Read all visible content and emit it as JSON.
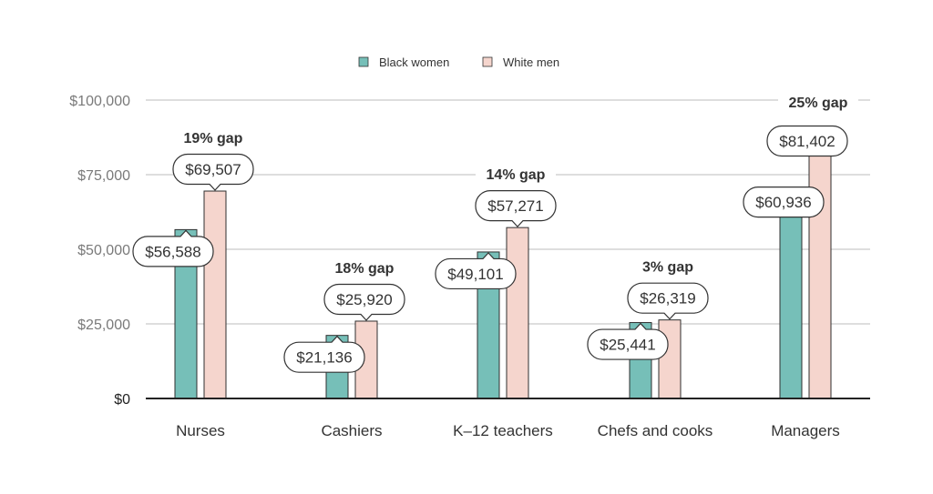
{
  "chart_data": {
    "type": "bar",
    "categories": [
      "Nurses",
      "Cashiers",
      "K–12 teachers",
      "Chefs and cooks",
      "Managers"
    ],
    "series": [
      {
        "name": "Black women",
        "color": "#76bfb8",
        "values": [
          56588,
          21136,
          49101,
          25441,
          60936
        ]
      },
      {
        "name": "White men",
        "color": "#f5d5cd",
        "values": [
          69507,
          25920,
          57271,
          26319,
          81402
        ]
      }
    ],
    "value_labels": [
      [
        "$56,588",
        "$21,136",
        "$49,101",
        "$25,441",
        "$60,936"
      ],
      [
        "$69,507",
        "$25,920",
        "$57,271",
        "$26,319",
        "$81,402"
      ]
    ],
    "gap_labels": [
      "19% gap",
      "18% gap",
      "14% gap",
      "3% gap",
      "25% gap"
    ],
    "y_ticks": [
      {
        "value": 0,
        "label": "$0"
      },
      {
        "value": 25000,
        "label": "$25,000"
      },
      {
        "value": 50000,
        "label": "$50,000"
      },
      {
        "value": 75000,
        "label": "$75,000"
      },
      {
        "value": 100000,
        "label": "$100,000"
      }
    ],
    "ylim": [
      0,
      100000
    ],
    "grid": true,
    "legend_position": "top-center"
  }
}
